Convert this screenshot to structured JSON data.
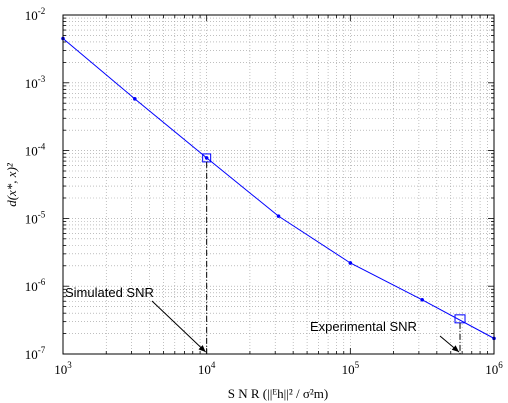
{
  "chart_data": {
    "type": "line",
    "xscale": "log",
    "yscale": "log",
    "xlim": [
      1000,
      1000000
    ],
    "ylim": [
      1e-07,
      0.01
    ],
    "grid": true,
    "xlabel": "S N R (||ᴱh||² / σ²m)",
    "ylabel": "d(x*, x)²",
    "x_ticks": [
      {
        "base": "10",
        "exp": "3",
        "value": 1000
      },
      {
        "base": "10",
        "exp": "4",
        "value": 10000
      },
      {
        "base": "10",
        "exp": "5",
        "value": 100000
      },
      {
        "base": "10",
        "exp": "6",
        "value": 1000000
      }
    ],
    "y_ticks": [
      {
        "base": "10",
        "exp": "-7",
        "value": 1e-07
      },
      {
        "base": "10",
        "exp": "-6",
        "value": 1e-06
      },
      {
        "base": "10",
        "exp": "-5",
        "value": 1e-05
      },
      {
        "base": "10",
        "exp": "-4",
        "value": 0.0001
      },
      {
        "base": "10",
        "exp": "-3",
        "value": 0.001
      },
      {
        "base": "10",
        "exp": "-2",
        "value": 0.01
      }
    ],
    "series": [
      {
        "color": "#0000ff",
        "x": [
          1000,
          3162,
          10000,
          31623,
          100000,
          316228,
          1000000
        ],
        "y": [
          0.0045,
          0.00058,
          7.8e-05,
          1.08e-05,
          2.2e-06,
          6.3e-07,
          1.7e-07
        ]
      }
    ],
    "annotations": [
      {
        "text": "Simulated SNR",
        "marker_x": 10000,
        "marker_y": 7.8e-05
      },
      {
        "text": "Experimental SNR",
        "marker_x": 580000,
        "marker_y": 3.3e-07
      }
    ]
  }
}
